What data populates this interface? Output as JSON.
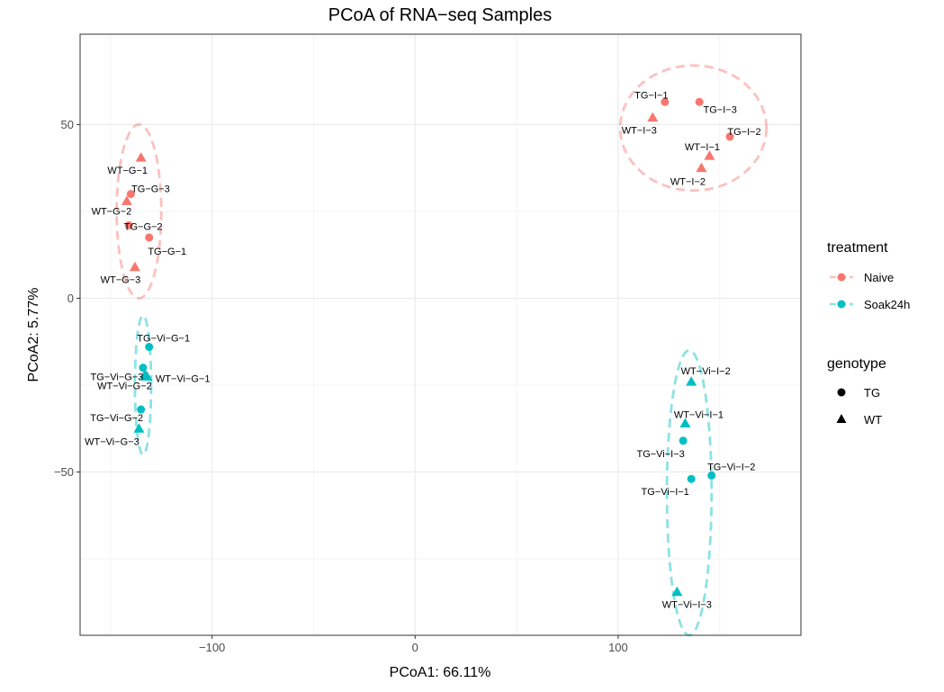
{
  "chart_data": {
    "type": "scatter",
    "title": "PCoA of RNA−seq Samples",
    "xlabel": "PCoA1: 66.11%",
    "ylabel": "PCoA2: 5.77%",
    "xlim": [
      -165,
      190
    ],
    "ylim": [
      -97,
      76
    ],
    "x_ticks": [
      -100,
      0,
      100
    ],
    "x_tick_labels": [
      "−100",
      "0",
      "100"
    ],
    "y_ticks": [
      -50,
      0,
      50
    ],
    "y_tick_labels": [
      "−50",
      "0",
      "50"
    ],
    "grid": true,
    "legend_position": "right",
    "colors": {
      "Naive": "#F8766D",
      "Soak24h": "#00BFC4"
    },
    "legend": {
      "treatment": {
        "title": "treatment",
        "entries": [
          "Naive",
          "Soak24h"
        ]
      },
      "genotype": {
        "title": "genotype",
        "entries": [
          "TG",
          "WT"
        ]
      }
    },
    "points": [
      {
        "label": "WT−G−1",
        "x": -135,
        "y": 40.5,
        "treatment": "Naive",
        "genotype": "WT"
      },
      {
        "label": "TG−G−3",
        "x": -140,
        "y": 30,
        "treatment": "Naive",
        "genotype": "TG"
      },
      {
        "label": "WT−G−2",
        "x": -142,
        "y": 28,
        "treatment": "Naive",
        "genotype": "WT"
      },
      {
        "label": "TG−G−2",
        "x": -141,
        "y": 21,
        "treatment": "Naive",
        "genotype": "TG"
      },
      {
        "label": "TG−G−1",
        "x": -131,
        "y": 17.5,
        "treatment": "Naive",
        "genotype": "TG"
      },
      {
        "label": "WT−G−3",
        "x": -138,
        "y": 9,
        "treatment": "Naive",
        "genotype": "WT"
      },
      {
        "label": "TG−I−1",
        "x": 123,
        "y": 56.5,
        "treatment": "Naive",
        "genotype": "TG"
      },
      {
        "label": "TG−I−3",
        "x": 140,
        "y": 56.5,
        "treatment": "Naive",
        "genotype": "TG"
      },
      {
        "label": "WT−I−3",
        "x": 117,
        "y": 52,
        "treatment": "Naive",
        "genotype": "WT"
      },
      {
        "label": "TG−I−2",
        "x": 155,
        "y": 46.5,
        "treatment": "Naive",
        "genotype": "TG"
      },
      {
        "label": "WT−I−1",
        "x": 145,
        "y": 41,
        "treatment": "Naive",
        "genotype": "WT"
      },
      {
        "label": "WT−I−2",
        "x": 141,
        "y": 37.5,
        "treatment": "Naive",
        "genotype": "WT"
      },
      {
        "label": "TG−Vi−G−1",
        "x": -131,
        "y": -14,
        "treatment": "Soak24h",
        "genotype": "TG"
      },
      {
        "label": "TG−Vi−G−3",
        "x": -134,
        "y": -20,
        "treatment": "Soak24h",
        "genotype": "TG"
      },
      {
        "label": "WT−Vi−G−1",
        "x": -133,
        "y": -22,
        "treatment": "Soak24h",
        "genotype": "WT"
      },
      {
        "label": "WT−Vi−G−2",
        "x": -132,
        "y": -22.5,
        "treatment": "Soak24h",
        "genotype": "WT"
      },
      {
        "label": "TG−Vi−G−2",
        "x": -135,
        "y": -32,
        "treatment": "Soak24h",
        "genotype": "TG"
      },
      {
        "label": "WT−Vi−G−3",
        "x": -136,
        "y": -37.5,
        "treatment": "Soak24h",
        "genotype": "WT"
      },
      {
        "label": "WT−Vi−I−2",
        "x": 136,
        "y": -24,
        "treatment": "Soak24h",
        "genotype": "WT"
      },
      {
        "label": "WT−Vi−I−1",
        "x": 133,
        "y": -36,
        "treatment": "Soak24h",
        "genotype": "WT"
      },
      {
        "label": "TG−Vi−I−3",
        "x": 132,
        "y": -41,
        "treatment": "Soak24h",
        "genotype": "TG"
      },
      {
        "label": "TG−Vi−I−2",
        "x": 146,
        "y": -51,
        "treatment": "Soak24h",
        "genotype": "TG"
      },
      {
        "label": "TG−Vi−I−1",
        "x": 136,
        "y": -52,
        "treatment": "Soak24h",
        "genotype": "TG"
      },
      {
        "label": "WT−Vi−I−3",
        "x": 129,
        "y": -84.5,
        "treatment": "Soak24h",
        "genotype": "WT"
      }
    ],
    "ellipses": [
      {
        "treatment": "Naive",
        "cx": -136,
        "cy": 25,
        "rx": 11,
        "ry": 25
      },
      {
        "treatment": "Naive",
        "cx": 137,
        "cy": 49,
        "rx": 36,
        "ry": 18
      },
      {
        "treatment": "Soak24h",
        "cx": -134,
        "cy": -25,
        "rx": 4,
        "ry": 20
      },
      {
        "treatment": "Soak24h",
        "cx": 135,
        "cy": -56,
        "rx": 11,
        "ry": 41
      }
    ]
  }
}
